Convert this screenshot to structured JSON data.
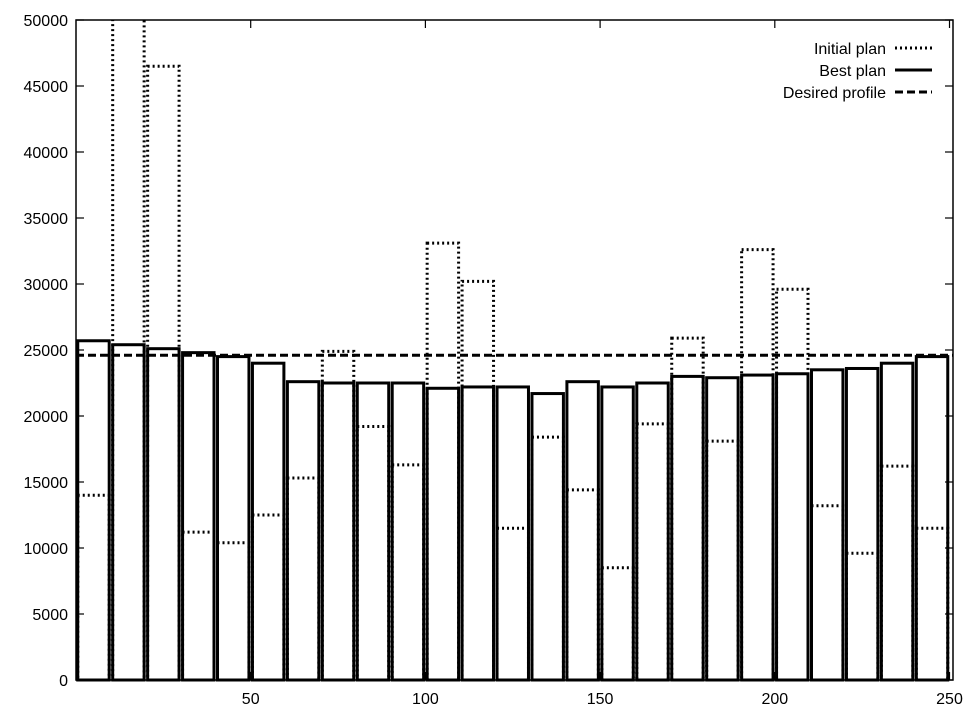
{
  "chart_data": {
    "type": "bar",
    "title": "",
    "xlabel": "",
    "ylabel": "",
    "xlim": [
      0,
      251
    ],
    "ylim": [
      0,
      50000
    ],
    "bar_width": 9,
    "grid": false,
    "legend_position": "top-right",
    "x": [
      5,
      15,
      25,
      35,
      45,
      55,
      65,
      75,
      85,
      95,
      105,
      115,
      125,
      135,
      145,
      155,
      165,
      175,
      185,
      195,
      205,
      215,
      225,
      235,
      245
    ],
    "x_ticks": [
      50,
      100,
      150,
      200,
      250
    ],
    "y_ticks": [
      0,
      5000,
      10000,
      15000,
      20000,
      25000,
      30000,
      35000,
      40000,
      45000,
      50000
    ],
    "series": [
      {
        "name": "Initial plan",
        "style": "dotted",
        "values": [
          14000,
          51000,
          46500,
          11200,
          10400,
          12500,
          15300,
          24900,
          19200,
          16300,
          33100,
          30200,
          11500,
          18400,
          14400,
          8500,
          19400,
          25900,
          18100,
          32600,
          29600,
          13200,
          9600,
          16200,
          11500
        ]
      },
      {
        "name": "Best plan",
        "style": "solid",
        "values": [
          25700,
          25400,
          25100,
          24800,
          24500,
          24000,
          22600,
          22500,
          22500,
          22500,
          22100,
          22200,
          22200,
          21700,
          22600,
          22200,
          22500,
          23000,
          22900,
          23100,
          23200,
          23500,
          23600,
          24000,
          24500
        ]
      },
      {
        "name": "Desired profile",
        "style": "dashed",
        "value": 24600
      }
    ]
  }
}
